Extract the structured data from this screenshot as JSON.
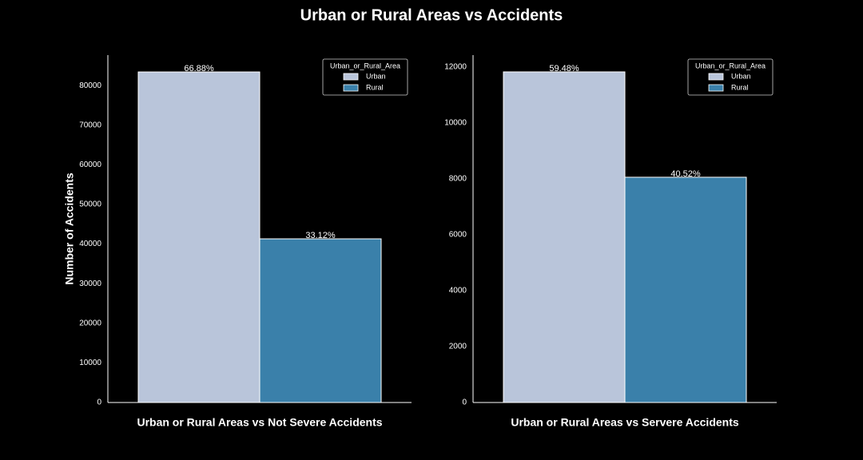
{
  "title": "Urban or Rural Areas vs Accidents",
  "chart_data": [
    {
      "type": "bar",
      "categories": [
        null
      ],
      "xlabel": "Urban or Rural Areas vs Not Severe Accidents",
      "ylabel": "Number of Accidents",
      "legend_title": "Urban_or_Rural_Area",
      "legend": "upper right",
      "series": [
        {
          "name": "Urban",
          "color": "#b9c5da",
          "values": [
            83450
          ],
          "annotation": "66.88%"
        },
        {
          "name": "Rural",
          "color": "#3a80aa",
          "values": [
            41320
          ],
          "annotation": "33.12%"
        }
      ],
      "ylim": [
        0,
        87700
      ],
      "yticks": [
        0,
        10000,
        20000,
        30000,
        40000,
        50000,
        60000,
        70000,
        80000
      ],
      "grid": false
    },
    {
      "type": "bar",
      "categories": [
        null
      ],
      "xlabel": "Urban or Rural Areas vs Servere Accidents",
      "legend_title": "Urban_or_Rural_Area",
      "legend": "upper right",
      "series": [
        {
          "name": "Urban",
          "color": "#b9c5da",
          "values": [
            11830
          ],
          "annotation": "59.48%"
        },
        {
          "name": "Rural",
          "color": "#3a80aa",
          "values": [
            8060
          ],
          "annotation": "40.52%"
        }
      ],
      "ylim": [
        0,
        12430
      ],
      "yticks": [
        0,
        2000,
        4000,
        6000,
        8000,
        10000,
        12000
      ],
      "grid": false
    }
  ]
}
